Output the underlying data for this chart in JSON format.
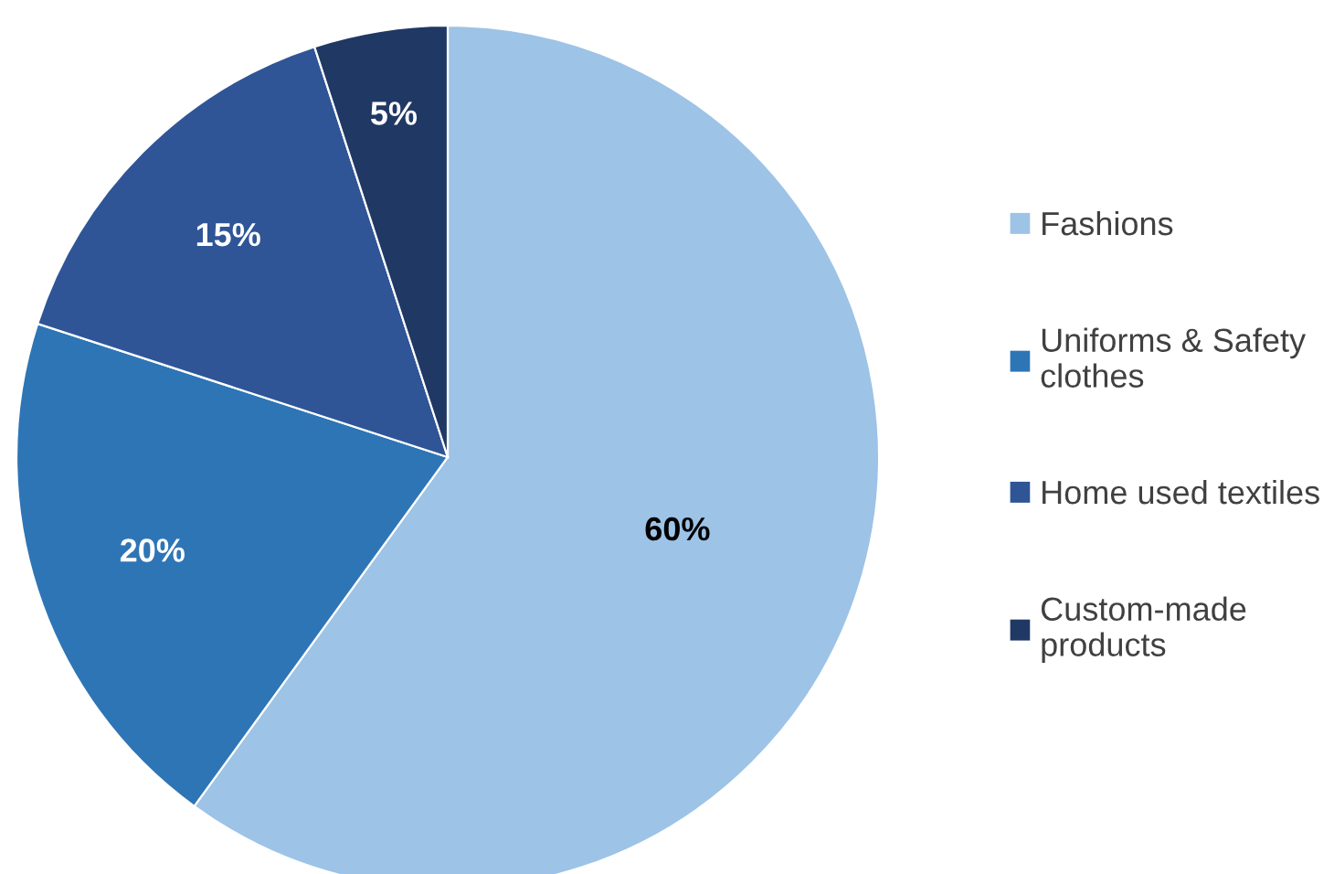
{
  "chart_data": {
    "type": "pie",
    "categories": [
      "Fashions",
      "Uniforms & Safety clothes",
      "Home used textiles",
      "Custom-made products"
    ],
    "values": [
      60,
      20,
      15,
      5
    ],
    "colors": [
      "#9dc3e6",
      "#2e75b6",
      "#2f5597",
      "#203864"
    ],
    "value_labels": [
      "60%",
      "20%",
      "15%",
      "5%"
    ],
    "legend": "right"
  }
}
